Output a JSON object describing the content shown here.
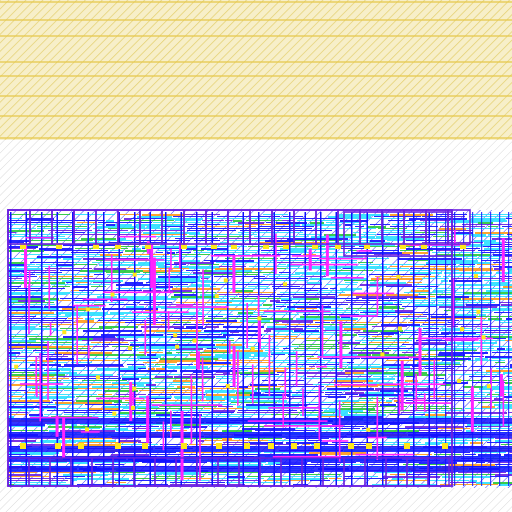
{
  "layout": {
    "background": "#ffffff",
    "hatch_color": "#d9d9d9",
    "rail_fill_color": "#f4ecc4",
    "rail_line_color": "#e6c84a",
    "palette": {
      "metal_blue": "#1010ff",
      "metal_violet": "#6a1ee0",
      "poly_magenta": "#ff22ff",
      "diffusion_cyan": "#2ae0ff",
      "via_yellow": "#ffe81a",
      "active_orange": "#ff9a1a",
      "implant_green": "#26c83a"
    }
  }
}
